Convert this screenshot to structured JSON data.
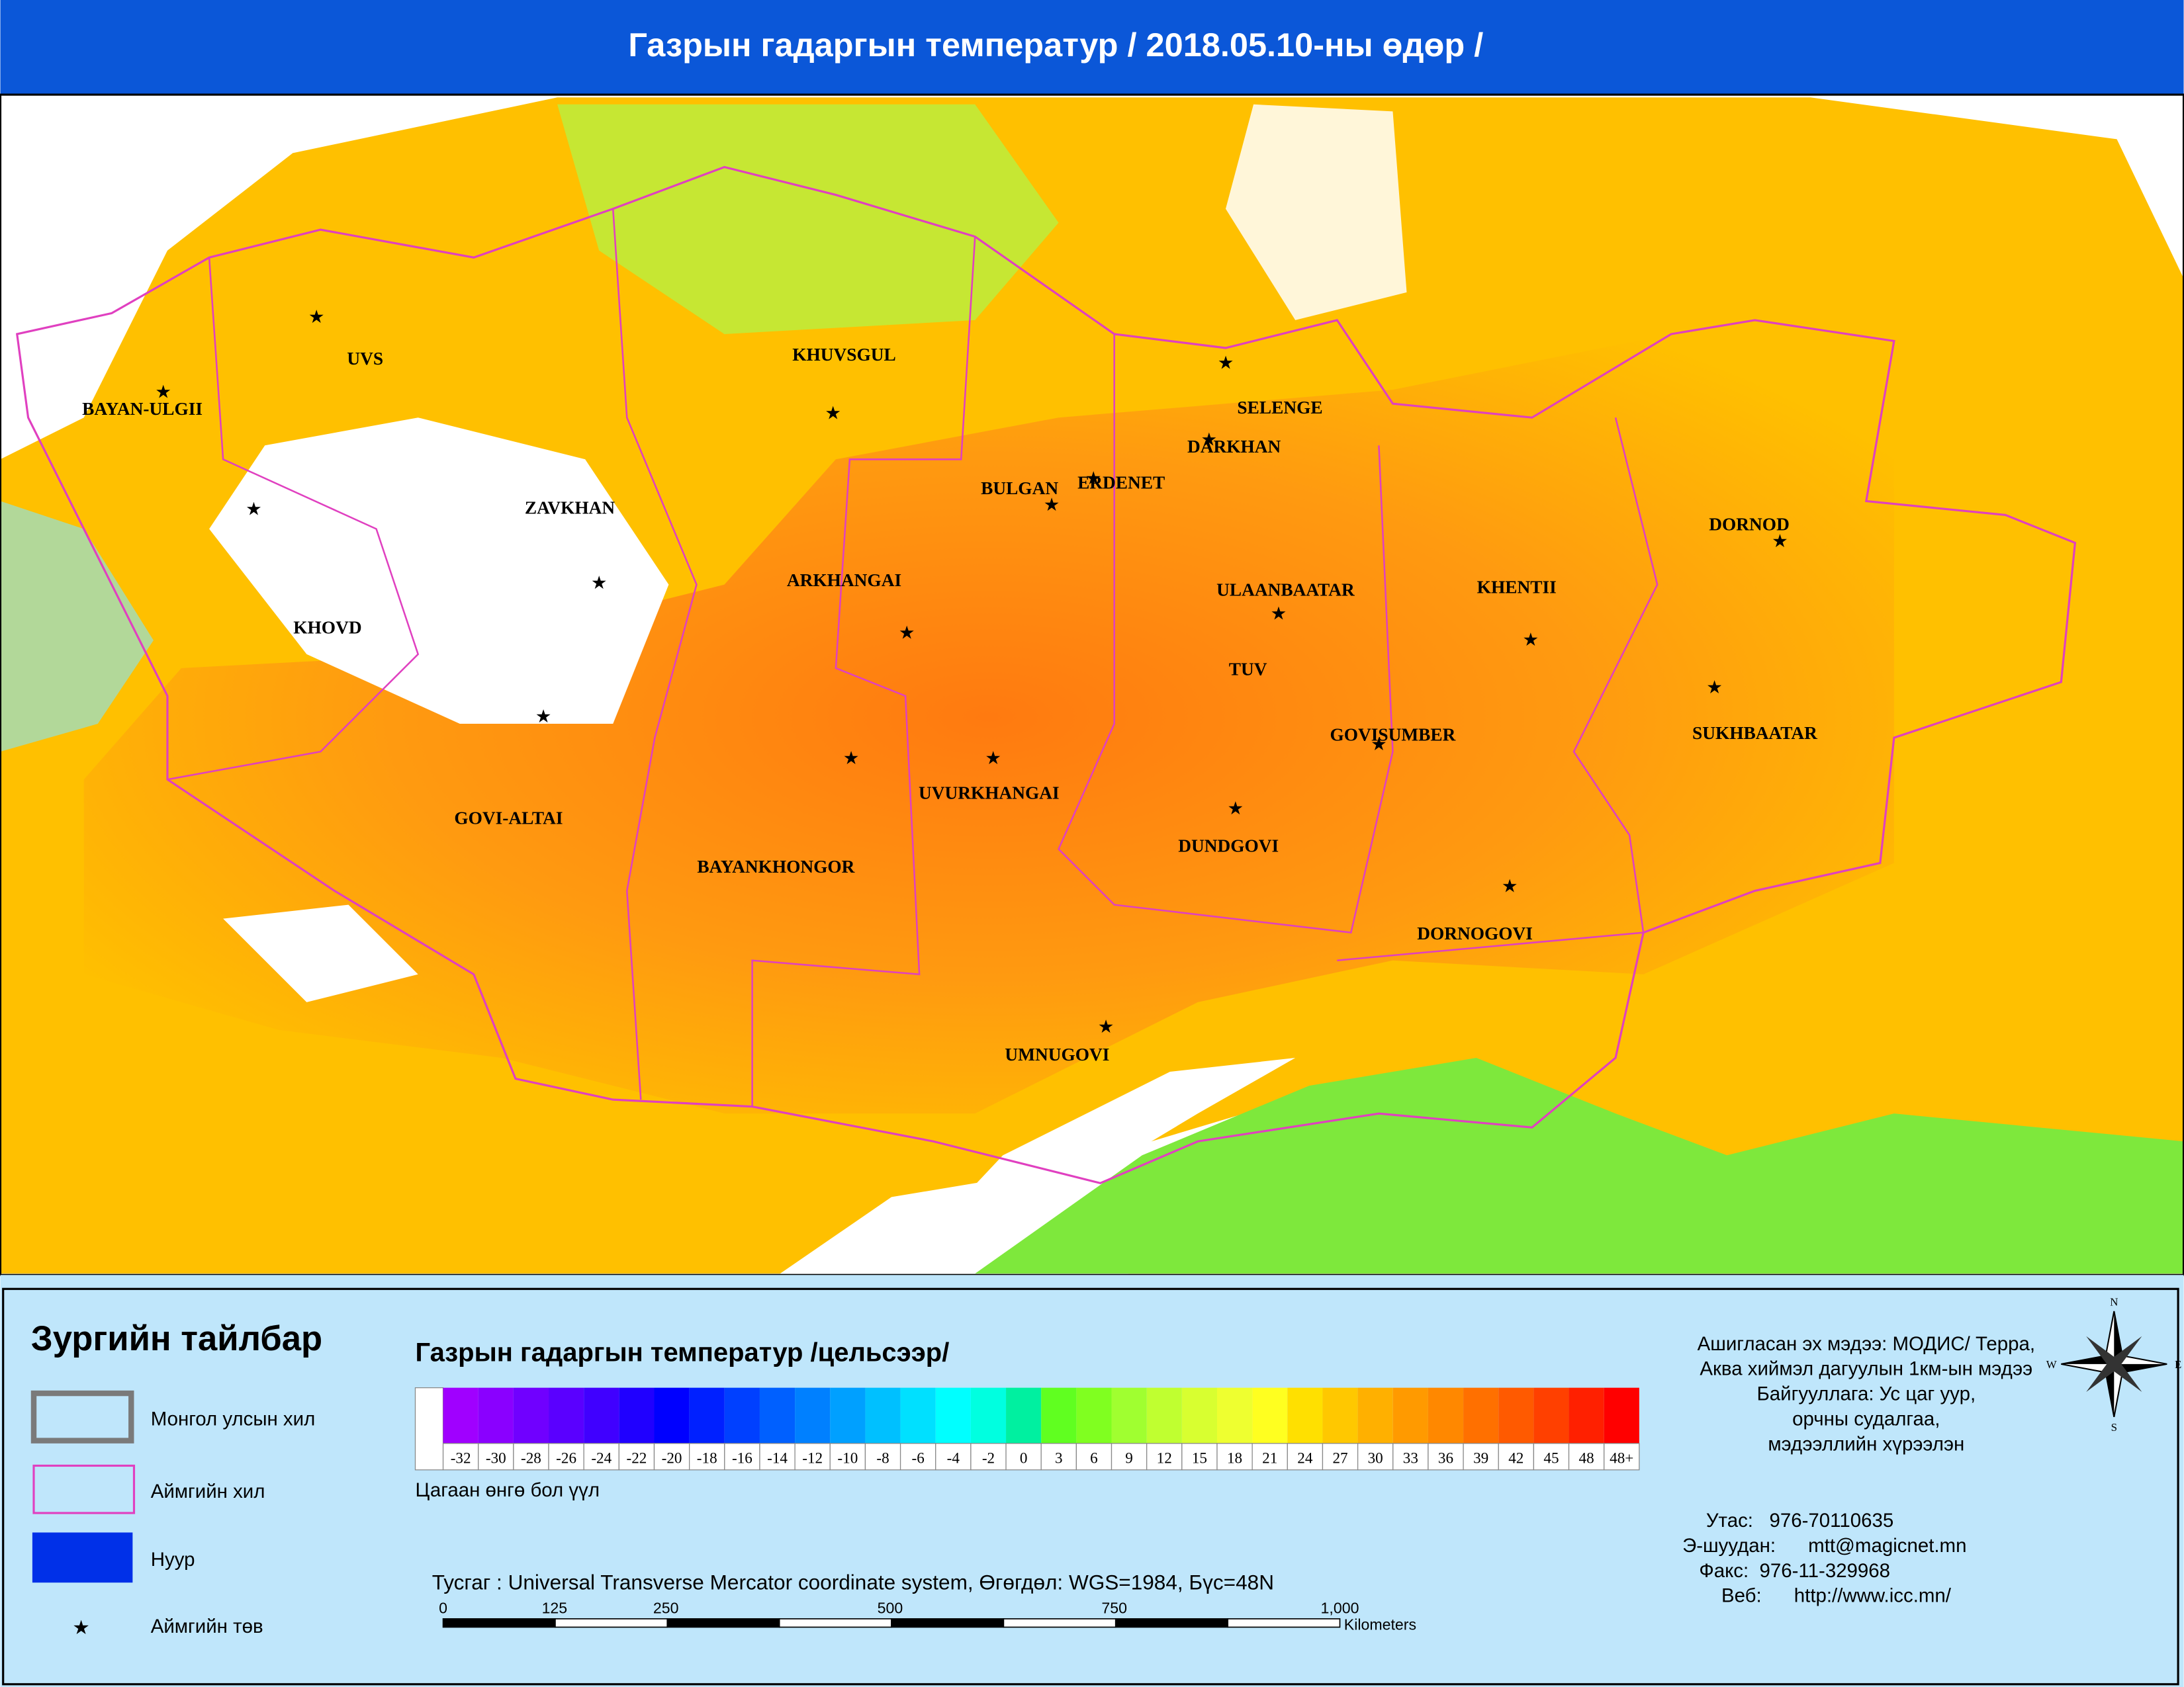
{
  "header": {
    "title": "Газрын гадаргын температур / 2018.05.10-ны өдөр /"
  },
  "map": {
    "provinces": [
      "UVS",
      "BAYAN-ULGII",
      "KHOVD",
      "ZAVKHAN",
      "GOVI-ALTAI",
      "KHUVSGUL",
      "ARKHANGAI",
      "BULGAN",
      "ERDENET",
      "SELENGE",
      "DARKHAN",
      "ULAANBAATAR",
      "TUV",
      "KHENTII",
      "DORNOD",
      "SUKHBAATAR",
      "GOVISUMBER",
      "DUNDGOVI",
      "DORNOGOVI",
      "UMNUGOVI",
      "UVURKHANGAI",
      "BAYANKHONGOR"
    ]
  },
  "legend": {
    "title": "Зургийн тайлбар",
    "items": [
      "Монгол улсын хил",
      "Аймгийн хил",
      "Нуур",
      "Аймгийн төв"
    ]
  },
  "color_scale": {
    "title": "Газрын гадаргын температур /цельсээр/",
    "note": "Цагаан өнгө бол үүл",
    "labels": [
      "-32",
      "-30",
      "-28",
      "-26",
      "-24",
      "-22",
      "-20",
      "-18",
      "-16",
      "-14",
      "-12",
      "-10",
      "-8",
      "-6",
      "-4",
      "-2",
      "0",
      "3",
      "6",
      "9",
      "12",
      "15",
      "18",
      "21",
      "24",
      "27",
      "30",
      "33",
      "36",
      "39",
      "42",
      "45",
      "48",
      "48+"
    ],
    "colors": [
      "#a000ff",
      "#8a00ff",
      "#7000ff",
      "#5a00ff",
      "#4000ff",
      "#2000ff",
      "#0000ff",
      "#0020ff",
      "#0040ff",
      "#0060ff",
      "#0080ff",
      "#00a0ff",
      "#00c0ff",
      "#00e0ff",
      "#00ffff",
      "#00ffe0",
      "#00f0a0",
      "#60ff20",
      "#80ff20",
      "#a0ff30",
      "#c0ff30",
      "#d8ff30",
      "#eeff30",
      "#ffff20",
      "#ffe000",
      "#ffc800",
      "#ffb000",
      "#ff9a00",
      "#ff8800",
      "#ff7000",
      "#ff5a00",
      "#ff4000",
      "#ff2000",
      "#ff0000"
    ]
  },
  "projection": {
    "text": "Тусгаг : Universal Transverse Mercator coordinate system, Өгөгдөл: WGS=1984, Бүс=48N",
    "scale_labels": [
      "0",
      "125",
      "250",
      "500",
      "750",
      "1,000"
    ],
    "unit": "Kilometers"
  },
  "compass": [
    "N",
    "E",
    "S",
    "W"
  ],
  "info": {
    "source": [
      "Ашигласан эх мэдээ: МОДИС/ Терра,",
      "Аква хиймэл дагуулын 1км-ын мэдээ",
      "Байгууллага: Ус цаг уур,",
      "орчны судалгаа,",
      "мэдээллийн хүрээлэн"
    ],
    "contact": [
      "Утас:   976-70110635",
      "Э-шуудан:      mtt@magicnet.mn",
      "Факс:  976-11-329968",
      "Веб:      http://www.icc.mn/"
    ]
  }
}
